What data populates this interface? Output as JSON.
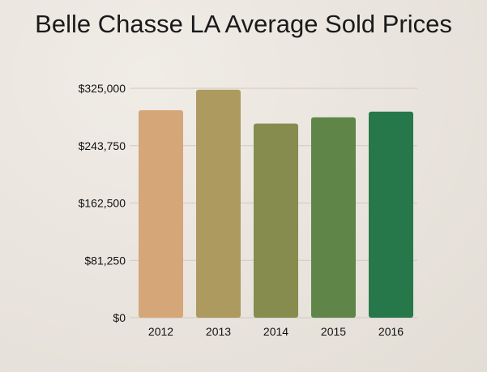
{
  "chart_data": {
    "type": "bar",
    "title": "Belle Chasse LA Average Sold Prices",
    "xlabel": "",
    "ylabel": "",
    "categories": [
      "2012",
      "2013",
      "2014",
      "2015",
      "2016"
    ],
    "values": [
      294000,
      323000,
      275000,
      284000,
      292000
    ],
    "ylim": [
      0,
      325000
    ],
    "yticks": [
      0,
      81250,
      162500,
      243750,
      325000
    ],
    "ytick_labels": [
      "$0",
      "$81,250",
      "$162,500",
      "$243,750",
      "$325,000"
    ],
    "colors": [
      "#d5a678",
      "#ad9a5e",
      "#868c4e",
      "#5f8648",
      "#26784a"
    ],
    "grid": true,
    "legend": "none"
  }
}
